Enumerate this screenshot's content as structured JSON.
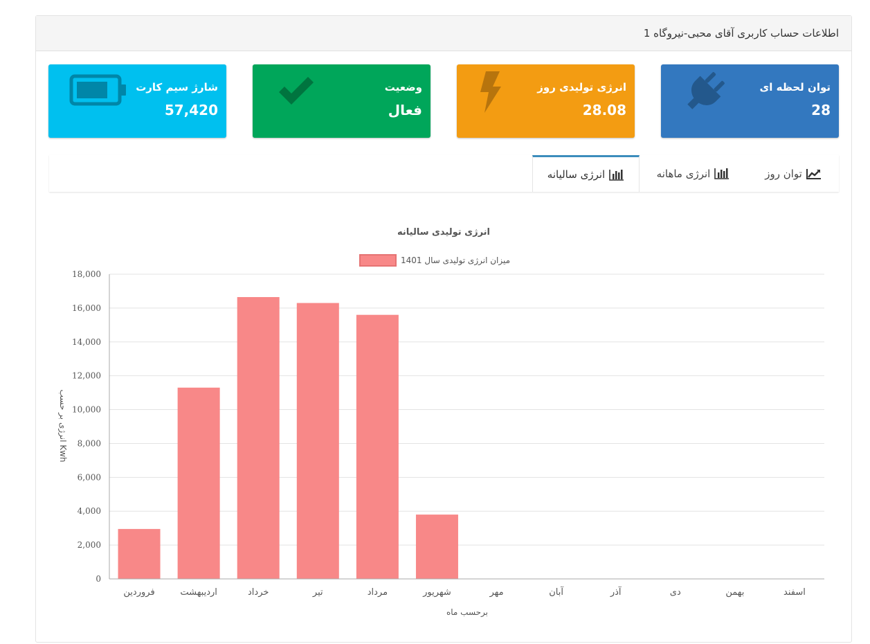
{
  "panel": {
    "title": "اطلاعات حساب کاربری آقای محبی-نیروگاه 1"
  },
  "boxes": [
    {
      "label": "توان لحظه ای",
      "value": "28",
      "color": "#3378bf",
      "icon": "plug-icon"
    },
    {
      "label": "انرژی تولیدی روز",
      "value": "28.08",
      "color": "#f39c12",
      "icon": "bolt-icon"
    },
    {
      "label": "وضعیت",
      "value": "فعال",
      "color": "#00a65a",
      "icon": "check-icon"
    },
    {
      "label": "شارژ سیم کارت",
      "value": "57,420",
      "color": "#00c0ef",
      "icon": "battery-icon"
    }
  ],
  "tabs": [
    {
      "label": "توان روز",
      "icon": "line-chart-icon"
    },
    {
      "label": "انرژی ماهانه",
      "icon": "bar-chart-icon"
    },
    {
      "label": "انرژی سالیانه",
      "icon": "bar-chart-icon",
      "active": true
    }
  ],
  "chart_data": {
    "type": "bar",
    "title": "انرژی تولیدی سالیانه",
    "xlabel": "برحسب ماه",
    "ylabel": "انرژی بر حسب Kwh",
    "ylim": [
      0,
      18000
    ],
    "yticks": [
      "0",
      "2,000",
      "4,000",
      "6,000",
      "8,000",
      "10,000",
      "12,000",
      "14,000",
      "16,000",
      "18,000"
    ],
    "legend_position": "top",
    "grid": true,
    "categories": [
      "فروردین",
      "اردیبهشت",
      "خرداد",
      "تیر",
      "مرداد",
      "شهریور",
      "مهر",
      "آبان",
      "آذر",
      "دی",
      "بهمن",
      "اسفند"
    ],
    "series": [
      {
        "name": "میزان انرژی تولیدی سال 1401",
        "color": "#f88888",
        "values": [
          2950,
          11300,
          16650,
          16300,
          15600,
          3800,
          0,
          0,
          0,
          0,
          0,
          0
        ]
      }
    ]
  }
}
